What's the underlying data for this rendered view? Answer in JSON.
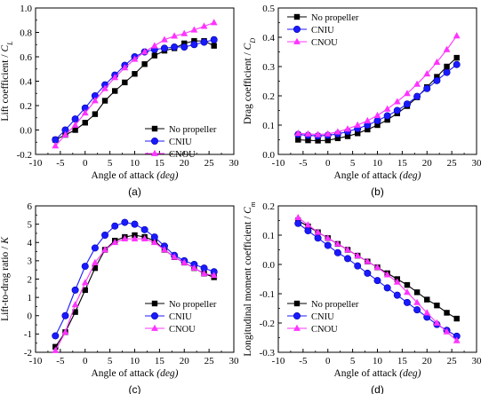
{
  "chart_data": [
    {
      "type": "line",
      "panel_label": "(a)",
      "xlabel": "Angle of attack (deg)",
      "ylabel": "Lift coefficient / C_L",
      "xlim": [
        -10,
        30
      ],
      "ylim": [
        -0.2,
        1.0
      ],
      "xticks": [
        -10,
        -5,
        0,
        5,
        10,
        15,
        20,
        25,
        30
      ],
      "yticks": [
        -0.2,
        0.0,
        0.2,
        0.4,
        0.6,
        0.8,
        1.0
      ],
      "ytick_labels": [
        "-0.2",
        "0.0",
        "0.2",
        "0.4",
        "0.6",
        "0.8",
        "1.0"
      ],
      "legend_position": "lower-right",
      "x": [
        -6,
        -4,
        -2,
        0,
        2,
        4,
        6,
        8,
        10,
        12,
        14,
        16,
        18,
        20,
        22,
        24,
        26
      ],
      "series": [
        {
          "name": "No propeller",
          "color": "#000000",
          "marker": "square",
          "values": [
            -0.08,
            -0.04,
            0.0,
            0.06,
            0.13,
            0.24,
            0.32,
            0.39,
            0.46,
            0.54,
            0.61,
            0.65,
            0.67,
            0.71,
            0.73,
            0.73,
            0.69
          ]
        },
        {
          "name": "CNIU",
          "color": "#1a1aff",
          "marker": "circle",
          "values": [
            -0.08,
            0.0,
            0.09,
            0.18,
            0.28,
            0.37,
            0.45,
            0.53,
            0.6,
            0.64,
            0.66,
            0.67,
            0.68,
            0.68,
            0.7,
            0.72,
            0.74
          ]
        },
        {
          "name": "CNOU",
          "color": "#ff33ff",
          "marker": "triangle",
          "values": [
            -0.13,
            -0.04,
            0.04,
            0.14,
            0.24,
            0.34,
            0.43,
            0.51,
            0.58,
            0.64,
            0.69,
            0.74,
            0.77,
            0.79,
            0.82,
            0.85,
            0.88
          ]
        }
      ]
    },
    {
      "type": "line",
      "panel_label": "(b)",
      "xlabel": "Angle of attack (deg)",
      "ylabel": "Drag coefficient / C_D",
      "xlim": [
        -10,
        30
      ],
      "ylim": [
        0.0,
        0.5
      ],
      "xticks": [
        -10,
        -5,
        0,
        5,
        10,
        15,
        20,
        25,
        30
      ],
      "yticks": [
        0.0,
        0.1,
        0.2,
        0.3,
        0.4,
        0.5
      ],
      "ytick_labels": [
        "0.0",
        "0.1",
        "0.2",
        "0.3",
        "0.4",
        "0.5"
      ],
      "legend_position": "top-left",
      "x": [
        -6,
        -4,
        -2,
        0,
        2,
        4,
        6,
        8,
        10,
        12,
        14,
        16,
        18,
        20,
        22,
        24,
        26
      ],
      "series": [
        {
          "name": "No propeller",
          "color": "#000000",
          "marker": "square",
          "values": [
            0.05,
            0.048,
            0.047,
            0.048,
            0.055,
            0.062,
            0.072,
            0.085,
            0.1,
            0.118,
            0.14,
            0.165,
            0.195,
            0.23,
            0.265,
            0.3,
            0.33
          ]
        },
        {
          "name": "CNIU",
          "color": "#1a1aff",
          "marker": "circle",
          "values": [
            0.068,
            0.065,
            0.063,
            0.065,
            0.07,
            0.078,
            0.088,
            0.1,
            0.115,
            0.132,
            0.15,
            0.172,
            0.198,
            0.225,
            0.252,
            0.28,
            0.307
          ]
        },
        {
          "name": "CNOU",
          "color": "#ff33ff",
          "marker": "triangle",
          "values": [
            0.072,
            0.07,
            0.068,
            0.07,
            0.077,
            0.087,
            0.1,
            0.115,
            0.133,
            0.155,
            0.18,
            0.208,
            0.24,
            0.275,
            0.315,
            0.358,
            0.405
          ]
        }
      ]
    },
    {
      "type": "line",
      "panel_label": "(c)",
      "xlabel": "Angle of attack (deg)",
      "ylabel": "Lift-to-drag ratio / K",
      "xlim": [
        -10,
        30
      ],
      "ylim": [
        -2,
        6
      ],
      "xticks": [
        -10,
        -5,
        0,
        5,
        10,
        15,
        20,
        25,
        30
      ],
      "yticks": [
        -2,
        -1,
        0,
        1,
        2,
        3,
        4,
        5,
        6
      ],
      "ytick_labels": [
        "-2",
        "-1",
        "0",
        "1",
        "2",
        "3",
        "4",
        "5",
        "6"
      ],
      "legend_position": "lower-right",
      "x": [
        -6,
        -4,
        -2,
        0,
        2,
        4,
        6,
        8,
        10,
        12,
        14,
        16,
        18,
        20,
        22,
        24,
        26
      ],
      "series": [
        {
          "name": "No propeller",
          "color": "#000000",
          "marker": "square",
          "values": [
            -1.7,
            -0.9,
            0.2,
            1.4,
            2.6,
            3.6,
            4.1,
            4.3,
            4.4,
            4.3,
            4.1,
            3.6,
            3.2,
            2.9,
            2.6,
            2.3,
            2.1
          ]
        },
        {
          "name": "CNIU",
          "color": "#1a1aff",
          "marker": "circle",
          "values": [
            -1.1,
            0.0,
            1.4,
            2.7,
            3.7,
            4.4,
            4.9,
            5.1,
            5.0,
            4.7,
            4.3,
            3.8,
            3.3,
            3.0,
            2.8,
            2.6,
            2.4
          ]
        },
        {
          "name": "CNOU",
          "color": "#ff33ff",
          "marker": "triangle",
          "values": [
            -1.9,
            -0.9,
            0.6,
            1.8,
            2.9,
            3.6,
            4.0,
            4.2,
            4.2,
            4.2,
            4.0,
            3.6,
            3.2,
            2.9,
            2.6,
            2.3,
            2.2
          ]
        }
      ]
    },
    {
      "type": "line",
      "panel_label": "(d)",
      "xlabel": "Angle of attack (deg)",
      "ylabel": "Longitudinal moment coefficient / C_m",
      "xlim": [
        -10,
        30
      ],
      "ylim": [
        -0.3,
        0.2
      ],
      "xticks": [
        -10,
        -5,
        0,
        5,
        10,
        15,
        20,
        25,
        30
      ],
      "yticks": [
        -0.3,
        -0.2,
        -0.1,
        0.0,
        0.1,
        0.2
      ],
      "ytick_labels": [
        "-0.3",
        "-0.2",
        "-0.1",
        "0.0",
        "0.1",
        "0.2"
      ],
      "legend_position": "lower-left",
      "x": [
        -6,
        -4,
        -2,
        0,
        2,
        4,
        6,
        8,
        10,
        12,
        14,
        16,
        18,
        20,
        22,
        24,
        26
      ],
      "series": [
        {
          "name": "No propeller",
          "color": "#000000",
          "marker": "square",
          "values": [
            0.15,
            0.13,
            0.11,
            0.09,
            0.07,
            0.05,
            0.03,
            0.01,
            -0.01,
            -0.03,
            -0.05,
            -0.07,
            -0.095,
            -0.12,
            -0.14,
            -0.165,
            -0.185
          ]
        },
        {
          "name": "CNIU",
          "color": "#1a1aff",
          "marker": "circle",
          "values": [
            0.14,
            0.115,
            0.09,
            0.065,
            0.04,
            0.02,
            -0.005,
            -0.03,
            -0.055,
            -0.08,
            -0.105,
            -0.13,
            -0.155,
            -0.18,
            -0.205,
            -0.225,
            -0.245
          ]
        },
        {
          "name": "CNOU",
          "color": "#ff33ff",
          "marker": "triangle",
          "values": [
            0.16,
            0.135,
            0.11,
            0.09,
            0.07,
            0.05,
            0.03,
            0.01,
            -0.01,
            -0.035,
            -0.06,
            -0.095,
            -0.13,
            -0.165,
            -0.2,
            -0.23,
            -0.26
          ]
        }
      ]
    }
  ]
}
